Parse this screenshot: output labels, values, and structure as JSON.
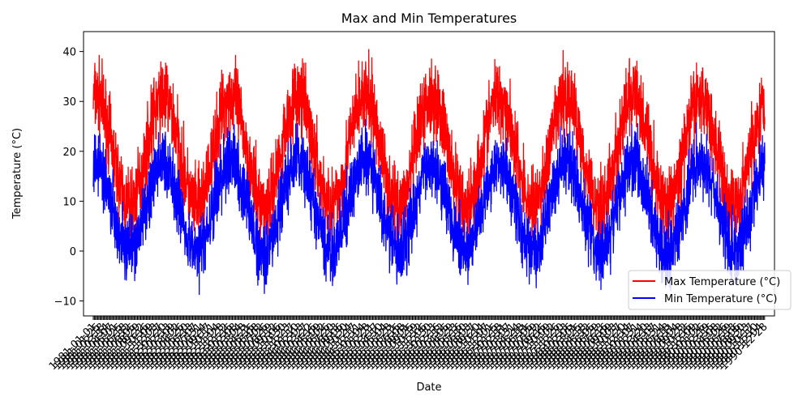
{
  "chart_data": {
    "type": "line",
    "title": "Max and Min Temperatures",
    "xlabel": "Date",
    "ylabel": "Temperature (°C)",
    "ylim": [
      -13,
      44
    ],
    "yticks": [
      -10,
      0,
      10,
      20,
      30,
      40
    ],
    "x_start_year": 1981,
    "x_end_year": 1990,
    "x_tick_label_note": "daily date tick labels rotated and overlapping (unreadable)",
    "series": [
      {
        "name": "Max Temperature (°C)",
        "color": "#ff0000",
        "seasonal_mean_range": [
          9,
          31
        ],
        "observed_min": 2,
        "observed_max": 41
      },
      {
        "name": "Min Temperature (°C)",
        "color": "#0000ff",
        "seasonal_mean_range": [
          0,
          18
        ],
        "observed_min": -10,
        "observed_max": 28
      }
    ],
    "legend": {
      "placement": "lower-right",
      "entries": [
        "Max Temperature (°C)",
        "Min Temperature (°C)"
      ]
    },
    "grid": false
  }
}
